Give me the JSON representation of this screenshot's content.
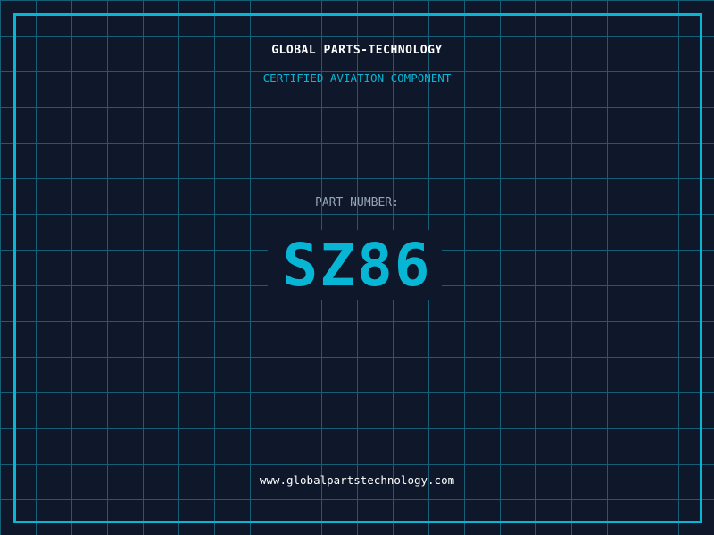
{
  "header": {
    "company": "GLOBAL PARTS-TECHNOLOGY",
    "subtitle": "CERTIFIED AVIATION COMPONENT"
  },
  "part": {
    "label": "PART NUMBER:",
    "number": "SZ86"
  },
  "footer": {
    "url": "www.globalpartstechnology.com"
  },
  "colors": {
    "background": "#0f172a",
    "accent": "#06b6d4",
    "grid": "#155e75",
    "label": "#94a3b8"
  }
}
